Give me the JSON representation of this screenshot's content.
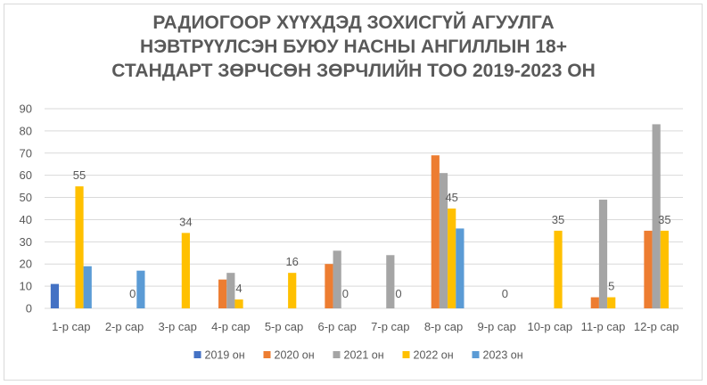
{
  "chart_data": {
    "type": "bar",
    "title_lines": [
      "РАДИОГООР ХҮҮХДЭД ЗОХИСГҮЙ АГУУЛГА",
      "НЭВТРҮҮЛСЭН БУЮУ НАСНЫ АНГИЛЛЫН 18+",
      "СТАНДАРТ ЗӨРЧСӨН ЗӨРЧЛИЙН ТОО 2019-2023 ОН"
    ],
    "categories": [
      "1-р сар",
      "2-р сар",
      "3-р сар",
      "4-р сар",
      "5-р сар",
      "6-р сар",
      "7-р сар",
      "8-р сар",
      "9-р сар",
      "10-р сар",
      "11-р сар",
      "12-р сар"
    ],
    "series": [
      {
        "name": "2019 он",
        "color": "#4472c4",
        "values": [
          11,
          null,
          null,
          null,
          null,
          null,
          null,
          null,
          null,
          null,
          null,
          null
        ]
      },
      {
        "name": "2020 он",
        "color": "#ed7d31",
        "values": [
          null,
          null,
          null,
          13,
          null,
          20,
          null,
          69,
          null,
          null,
          5,
          35
        ]
      },
      {
        "name": "2021 он",
        "color": "#a5a5a5",
        "values": [
          null,
          null,
          null,
          16,
          null,
          26,
          24,
          61,
          null,
          null,
          49,
          83
        ]
      },
      {
        "name": "2022 он",
        "color": "#ffc000",
        "values": [
          55,
          null,
          34,
          4,
          16,
          null,
          null,
          45,
          null,
          35,
          5,
          35
        ]
      },
      {
        "name": "2023 он",
        "color": "#5b9bd5",
        "values": [
          19,
          17,
          null,
          null,
          null,
          null,
          null,
          36,
          null,
          null,
          null,
          null
        ]
      }
    ],
    "data_labels": [
      {
        "category": "1-р сар",
        "text": "55"
      },
      {
        "category": "2-р сар",
        "text": "0"
      },
      {
        "category": "3-р сар",
        "text": "34"
      },
      {
        "category": "4-р сар",
        "text": "4"
      },
      {
        "category": "5-р сар",
        "text": "16"
      },
      {
        "category": "6-р сар",
        "text": "0"
      },
      {
        "category": "7-р сар",
        "text": "0"
      },
      {
        "category": "8-р сар",
        "text": "45"
      },
      {
        "category": "9-р сар",
        "text": "0"
      },
      {
        "category": "10-р сар",
        "text": "35"
      },
      {
        "category": "11-р сар",
        "text": "5"
      },
      {
        "category": "12-р сар",
        "text": "35"
      }
    ],
    "ylim": [
      0,
      90
    ],
    "yticks": [
      0,
      10,
      20,
      30,
      40,
      50,
      60,
      70,
      80,
      90
    ],
    "grid": true,
    "legend": "bottom"
  }
}
